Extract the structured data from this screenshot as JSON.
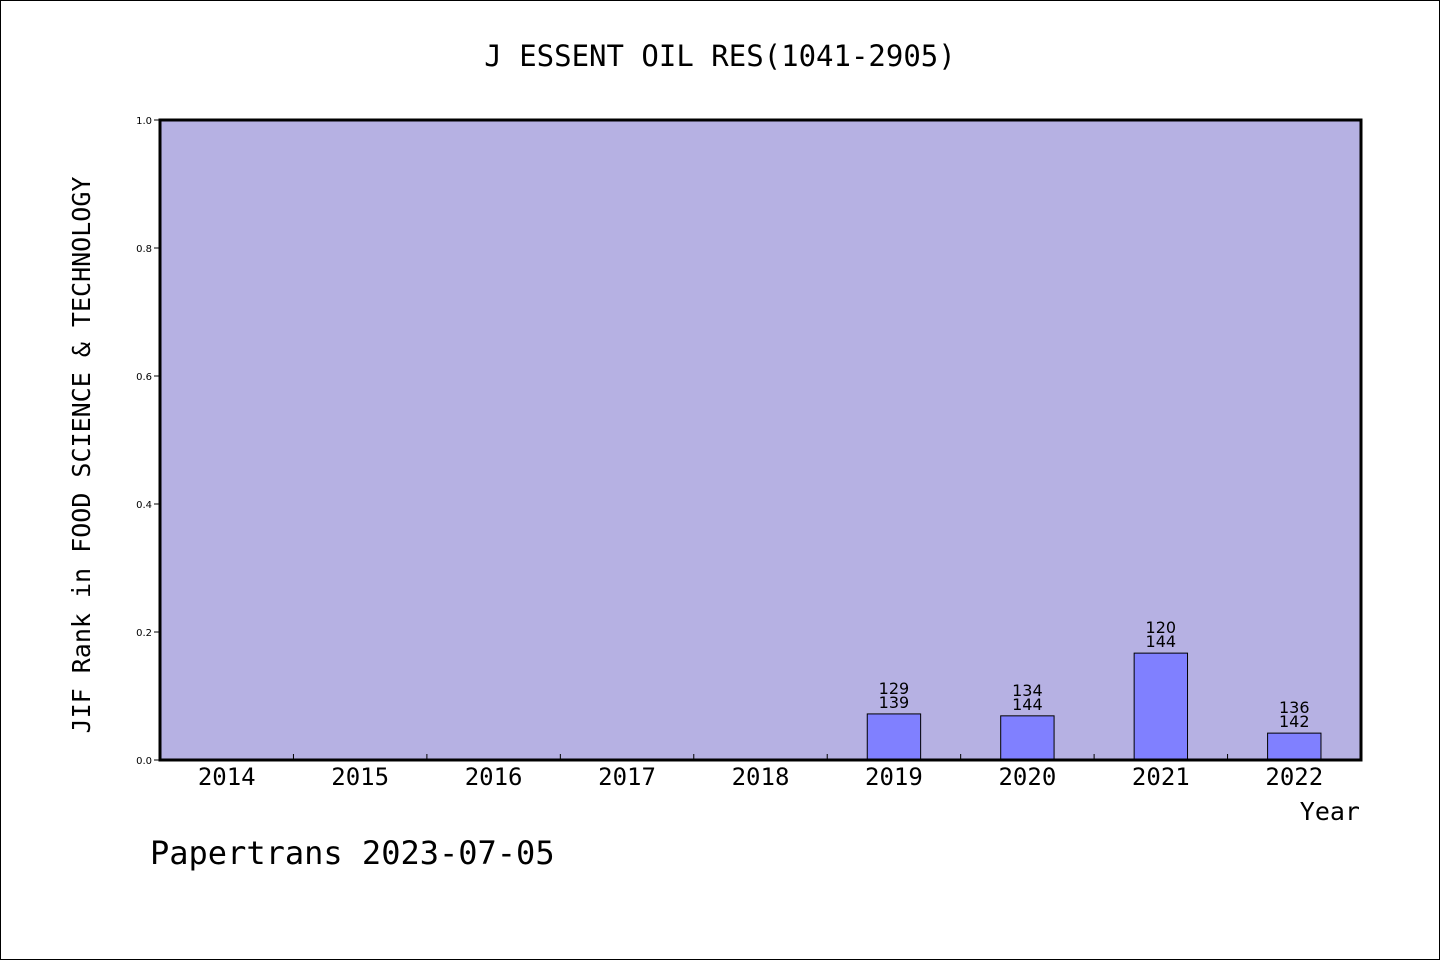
{
  "chart_data": {
    "type": "bar",
    "title": "J ESSENT OIL RES(1041-2905)",
    "xlabel": "Year",
    "ylabel": "JIF Rank in FOOD SCIENCE & TECHNOLOGY",
    "ylim": [
      0,
      1.0
    ],
    "y_ticks": [
      "0.0",
      "0.2",
      "0.4",
      "0.6",
      "0.8",
      "1.0"
    ],
    "categories": [
      "2014",
      "2015",
      "2016",
      "2017",
      "2018",
      "2019",
      "2020",
      "2021",
      "2022"
    ],
    "values": [
      null,
      null,
      null,
      null,
      null,
      0.072,
      0.069,
      0.167,
      0.042
    ],
    "bar_labels": [
      null,
      null,
      null,
      null,
      null,
      {
        "rank": "129",
        "total": "139"
      },
      {
        "rank": "134",
        "total": "144"
      },
      {
        "rank": "120",
        "total": "144"
      },
      {
        "rank": "136",
        "total": "142"
      }
    ],
    "colors": {
      "plot_background": "#b6b1e3",
      "bar_fill": "#8080ff",
      "axis": "#000000"
    },
    "grid": false
  },
  "footer": "Papertrans 2023-07-05"
}
